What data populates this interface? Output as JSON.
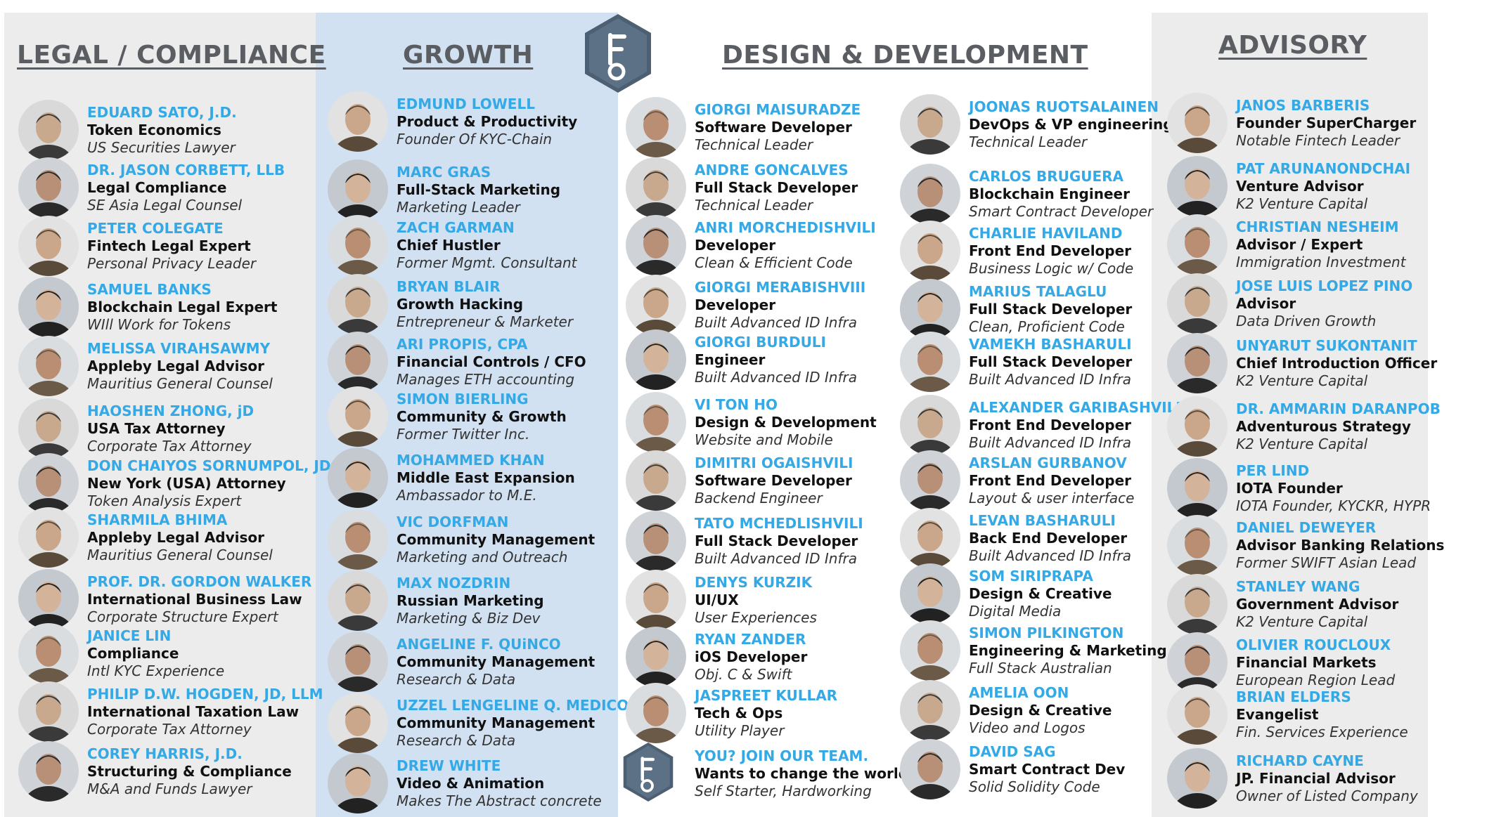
{
  "headings": {
    "legal": "LEGAL / COMPLIANCE",
    "growth": "GROWTH",
    "design": "DESIGN & DEVELOPMENT",
    "advisory": "ADVISORY"
  },
  "legal": [
    {
      "name": "EDUARD SATO, J.D.",
      "role": "Token Economics",
      "desc": "US Securities Lawyer"
    },
    {
      "name": "DR. JASON CORBETT, LLB",
      "role": "Legal Compliance",
      "desc": "SE Asia Legal Counsel"
    },
    {
      "name": "PETER COLEGATE",
      "role": "Fintech Legal Expert",
      "desc": "Personal Privacy Leader"
    },
    {
      "name": "SAMUEL BANKS",
      "role": "Blockchain Legal Expert",
      "desc": "WIll Work for Tokens"
    },
    {
      "name": "MELISSA VIRAHSAWMY",
      "role": "Appleby Legal Advisor",
      "desc": "Mauritius General Counsel"
    },
    {
      "name": "HAOSHEN ZHONG, jD",
      "role": "USA Tax Attorney",
      "desc": "Corporate Tax Attorney"
    },
    {
      "name": "DON CHAIYOS SORNUMPOL, JD",
      "role": "New York (USA) Attorney",
      "desc": "Token Analysis Expert"
    },
    {
      "name": "SHARMILA BHIMA",
      "role": "Appleby Legal Advisor",
      "desc": "Mauritius General Counsel"
    },
    {
      "name": "PROF. DR. GORDON WALKER",
      "role": "International Business Law",
      "desc": "Corporate Structure Expert"
    },
    {
      "name": "JANICE LIN",
      "role": "Compliance",
      "desc": "Intl  KYC Experience"
    },
    {
      "name": "PHILIP D.W. HOGDEN, JD, LLM",
      "role": "International Taxation Law",
      "desc": "Corporate Tax Attorney"
    },
    {
      "name": "COREY HARRIS, J.D.",
      "role": "Structuring & Compliance",
      "desc": "M&A and Funds Lawyer"
    }
  ],
  "growth": [
    {
      "name": "EDMUND LOWELL",
      "role": "Product & Productivity",
      "desc": "Founder Of KYC-Chain"
    },
    {
      "name": "MARC GRAS",
      "role": "Full-Stack Marketing",
      "desc": "Marketing Leader"
    },
    {
      "name": "ZACH GARMAN",
      "role": "Chief Hustler",
      "desc": "Former Mgmt. Consultant"
    },
    {
      "name": "BRYAN BLAIR",
      "role": "Growth Hacking",
      "desc": "Entrepreneur & Marketer"
    },
    {
      "name": "ARI PROPIS, CPA",
      "role": "Financial Controls / CFO",
      "desc": "Manages ETH accounting"
    },
    {
      "name": "SIMON BIERLING",
      "role": "Community & Growth",
      "desc": "Former Twitter Inc."
    },
    {
      "name": "MOHAMMED KHAN",
      "role": "Middle East Expansion",
      "desc": "Ambassador to M.E."
    },
    {
      "name": "VIC DORFMAN",
      "role": "Community Management",
      "desc": "Marketing and Outreach"
    },
    {
      "name": "MAX NOZDRIN",
      "role": "Russian Marketing",
      "desc": "Marketing & Biz Dev"
    },
    {
      "name": "ANGELINE F. QUiNCO",
      "role": "Community Management",
      "desc": "Research & Data"
    },
    {
      "name": "UZZEL LENGELINE Q. MEDICO",
      "role": "Community Management",
      "desc": "Research & Data"
    },
    {
      "name": "DREW WHITE",
      "role": "Video & Animation",
      "desc": "Makes The Abstract concrete"
    }
  ],
  "design1": [
    {
      "name": "GIORGI MAISURADZE",
      "role": "Software Developer",
      "desc": "Technical Leader"
    },
    {
      "name": "ANDRE GONCALVES",
      "role": "Full Stack Developer",
      "desc": "Technical Leader"
    },
    {
      "name": "ANRI MORCHEDISHVILI",
      "role": "Developer",
      "desc": "Clean & Efficient Code"
    },
    {
      "name": "GIORGI MERABISHVIII",
      "role": "Developer",
      "desc": "Built Advanced ID Infra"
    },
    {
      "name": "GIORGI BURDULI",
      "role": "Engineer",
      "desc": "Built Advanced ID Infra"
    },
    {
      "name": "VI TON HO",
      "role": "Design & Development",
      "desc": "Website and Mobile"
    },
    {
      "name": "DIMITRI OGAISHVILI",
      "role": "Software Developer",
      "desc": "Backend Engineer"
    },
    {
      "name": "TATO MCHEDLISHVILI",
      "role": "Full Stack Developer",
      "desc": "Built Advanced ID Infra"
    },
    {
      "name": "DENYS KURZIK",
      "role": "UI/UX",
      "desc": "User Experiences"
    },
    {
      "name": "RYAN ZANDER",
      "role": "iOS Developer",
      "desc": "Obj. C & Swift"
    },
    {
      "name": "JASPREET KULLAR",
      "role": "Tech & Ops",
      "desc": "Utility Player"
    },
    {
      "name": "YOU? JOIN OUR TEAM.",
      "role": "Wants to change the world",
      "desc": "Self Starter, Hardworking"
    }
  ],
  "design2": [
    {
      "name": "JOONAS RUOTSALAINEN",
      "role": "DevOps & VP engineering",
      "desc": "Technical Leader"
    },
    {
      "name": "CARLOS BRUGUERA",
      "role": "Blockchain Engineer",
      "desc": "Smart Contract Developer"
    },
    {
      "name": "CHARLIE HAVILAND",
      "role": "Front End Developer",
      "desc": "Business Logic w/ Code"
    },
    {
      "name": "MARIUS TALAGLU",
      "role": "Full Stack Developer",
      "desc": "Clean, Proficient Code"
    },
    {
      "name": "VAMEKH BASHARULI",
      "role": "Full Stack Developer",
      "desc": "Built Advanced ID Infra"
    },
    {
      "name": "ALEXANDER GARIBASHVILI",
      "role": "Front End Developer",
      "desc": "Built Advanced ID Infra"
    },
    {
      "name": "ARSLAN GURBANOV",
      "role": "Front End Developer",
      "desc": "Layout & user interface"
    },
    {
      "name": "LEVAN BASHARULI",
      "role": "Back End Developer",
      "desc": "Built Advanced ID Infra"
    },
    {
      "name": "SOM SIRIPRAPA",
      "role": "Design & Creative",
      "desc": "Digital Media"
    },
    {
      "name": "SIMON PILKINGTON",
      "role": "Engineering & Marketing",
      "desc": "Full Stack Australian"
    },
    {
      "name": "AMELIA OON",
      "role": "Design & Creative",
      "desc": "Video and Logos"
    },
    {
      "name": "DAVID SAG",
      "role": "Smart Contract Dev",
      "desc": "Solid Solidity Code"
    }
  ],
  "advisory": [
    {
      "name": "JANOS BARBERIS",
      "role": "Founder SuperCharger",
      "desc": "Notable Fintech Leader"
    },
    {
      "name": "PAT ARUNANONDCHAI",
      "role": "Venture Advisor",
      "desc": "K2 Venture Capital"
    },
    {
      "name": "CHRISTIAN NESHEIM",
      "role": "Advisor / Expert",
      "desc": "Immigration Investment"
    },
    {
      "name": "JOSE LUIS LOPEZ PINO",
      "role": "Advisor",
      "desc": "Data Driven Growth"
    },
    {
      "name": "UNYARUT SUKONTANIT",
      "role": "Chief Introduction Officer",
      "desc": "K2 Venture Capital"
    },
    {
      "name": "DR. AMMARIN DARANPOB",
      "role": "Adventurous Strategy",
      "desc": "K2 Venture Capital"
    },
    {
      "name": "PER LIND",
      "role": "IOTA Founder",
      "desc": "IOTA Founder, KYCKR, HYPR"
    },
    {
      "name": "DANIEL DEWEYER",
      "role": "Advisor Banking Relations",
      "desc": "Former SWIFT Asian Lead"
    },
    {
      "name": "STANLEY WANG",
      "role": "Government Advisor",
      "desc": "K2 Venture Capital"
    },
    {
      "name": "OLIVIER ROUCLOUX",
      "role": "Financial Markets",
      "desc": "European Region Lead"
    },
    {
      "name": "BRIAN ELDERS",
      "role": "Evangelist",
      "desc": "Fin. Services Experience"
    },
    {
      "name": "RICHARD CAYNE",
      "role": "JP.  Financial Advisor",
      "desc": "Owner of Listed Company"
    }
  ]
}
